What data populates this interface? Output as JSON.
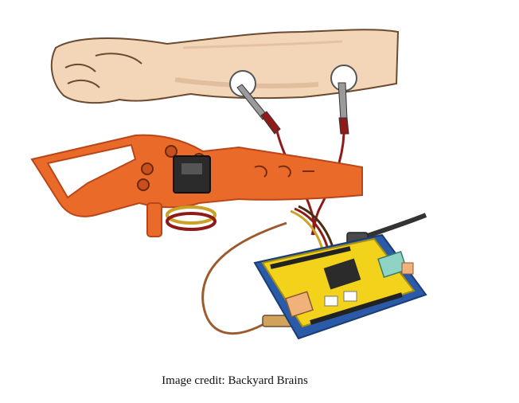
{
  "caption": {
    "text": "Image credit: Backyard Brains"
  },
  "illustration": {
    "subject": "claw-gripper-robot-arm-emg",
    "colors": {
      "skin": "#f3d6b8",
      "skin_shadow": "#d9b393",
      "claw": "#ea6a2a",
      "claw_dark": "#b9461b",
      "board": "#f2d21a",
      "board_dark": "#2a5aa8",
      "wire_red": "#8e1b18",
      "wire_brown": "#9c5a2e",
      "servo": "#2b2b2b"
    }
  }
}
